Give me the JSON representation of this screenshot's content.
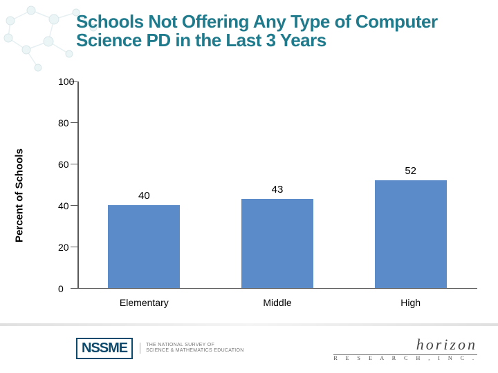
{
  "title": {
    "text": "Schools Not Offering Any Type of Computer Science PD in the Last 3 Years",
    "color": "#1f7a8c",
    "fontsize": 26
  },
  "chart": {
    "type": "bar",
    "ylabel": "Percent of Schools",
    "ylabel_fontsize": 15,
    "ylim": [
      0,
      100
    ],
    "ytick_step": 20,
    "yticks": [
      0,
      20,
      40,
      60,
      80,
      100
    ],
    "tick_fontsize": 14,
    "categories": [
      "Elementary",
      "Middle",
      "High"
    ],
    "values": [
      40,
      43,
      52
    ],
    "value_label_fontsize": 15,
    "xlabel_fontsize": 14,
    "bar_color": "#5b8bc9",
    "bar_width_pct": 18,
    "axis_color": "#595959",
    "background_color": "#ffffff"
  },
  "footer": {
    "nssme_mark": "NSSME",
    "nssme_sub": "THE NATIONAL SURVEY OF\nSCIENCE & MATHEMATICS EDUCATION",
    "horizon_top": "horizon",
    "horizon_bot": "R E S E A R C H ,  I N C ."
  },
  "deco": {
    "node_fill": "#c9e3e8",
    "node_stroke": "#8fb8c2",
    "edge_color": "#b8d4db"
  }
}
